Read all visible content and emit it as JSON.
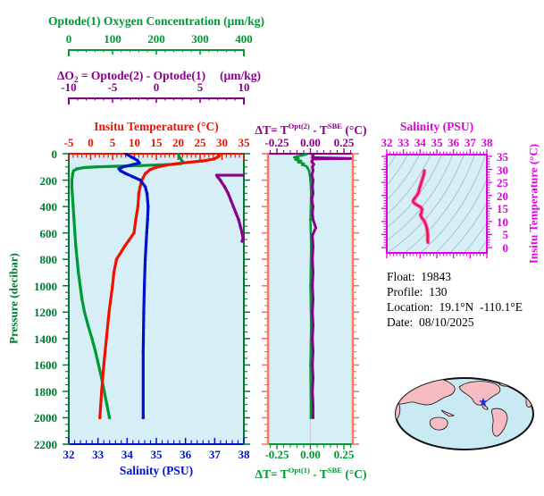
{
  "colors": {
    "green": "#009933",
    "dark_green": "#007A33",
    "red": "#EE1100",
    "blue": "#0011CC",
    "purple": "#8A008A",
    "magenta": "#E000E0",
    "salmon": "#F87860",
    "plot_bg": "#D6EEF6",
    "zero_line": "#F3BCCB",
    "contour": "#93B7BE",
    "ts_pink": "#FF4DA6",
    "ts_core": "#E01040",
    "map_ocean": "#C9E9F3",
    "map_land": "#F6BCC2",
    "map_outline": "#111111",
    "star_blue": "#2233DD"
  },
  "oxygen_axis": {
    "title": "Optode(1) Oxygen Concentration (μm/kg)",
    "tick_labels": [
      "0",
      "100",
      "200",
      "300",
      "400"
    ],
    "min": 0,
    "max": 400,
    "minor_step": 20
  },
  "delta_o2_axis": {
    "title_p1": "ΔO",
    "title_sub": "2",
    "title_p2": " = Optode(2) - Optode(1)",
    "title_unit": "(μm/kg)",
    "tick_labels": [
      "-10",
      "-5",
      "0",
      "5",
      "10"
    ],
    "min": -10,
    "max": 10,
    "minor_step": 1
  },
  "temperature_axis": {
    "title": "Insitu Temperature (°C)",
    "tick_labels": [
      "-5",
      "0",
      "5",
      "10",
      "15",
      "20",
      "25",
      "30",
      "35"
    ],
    "min": -5,
    "max": 35,
    "minor_step": 1
  },
  "pressure_axis": {
    "label": "Pressure (decibar)",
    "tick_labels": [
      "0",
      "200",
      "400",
      "600",
      "800",
      "1000",
      "1200",
      "1400",
      "1600",
      "1800",
      "2000",
      "2200"
    ],
    "min": 0,
    "max": 2200,
    "minor_step": 50
  },
  "salinity_axis": {
    "title": "Salinity (PSU)",
    "tick_labels": [
      "32",
      "33",
      "34",
      "35",
      "36",
      "37",
      "38"
    ],
    "min": 32,
    "max": 38,
    "minor_step": 0.2
  },
  "middle_panel": {
    "top_title": {
      "p1": "ΔT= T",
      "sup1": "Opt(2)",
      "p2": " - T",
      "sup2": "SBE",
      "p3": " (°C)"
    },
    "bottom_title": {
      "p1": "ΔT= T",
      "sup1": "Opt(1)",
      "p2": " - T",
      "sup2": "SBE",
      "p3": " (°C)"
    },
    "tick_labels": [
      "-0.25",
      "0.00",
      "0.25"
    ],
    "min": -0.317,
    "max": 0.317,
    "minor_step": 0.05
  },
  "ts_panel": {
    "title": "Salinity (PSU)",
    "x_tick_labels": [
      "32",
      "33",
      "34",
      "35",
      "36",
      "37",
      "38"
    ],
    "y_tick_labels": [
      "35",
      "30",
      "25",
      "20",
      "15",
      "10",
      "5",
      "0"
    ],
    "y_label": "Insitu Temperature (°C)",
    "contour_count": 15
  },
  "info": {
    "float_line": "Float:  19843",
    "profile_line": "Profile:  130",
    "location_line": "Location:  19.1°N  -110.1°E",
    "date_line": "Date:  08/10/2025"
  },
  "chart_data": [
    {
      "type": "line",
      "title": "Profile plot: oxygen / temperature / salinity / ΔO2 vs pressure",
      "ylabel": "Pressure (decibar)",
      "ylim": [
        0,
        2200
      ],
      "grid": false,
      "series": [
        {
          "name": "oxygen_umol_kg",
          "axis": "oxygen",
          "xlim": [
            0,
            400
          ],
          "color_key": "green",
          "points": [
            [
              0,
              250
            ],
            [
              20,
              252
            ],
            [
              40,
              256
            ],
            [
              60,
              260
            ],
            [
              75,
              256
            ],
            [
              80,
              238
            ],
            [
              85,
              205
            ],
            [
              90,
              160
            ],
            [
              95,
              110
            ],
            [
              100,
              62
            ],
            [
              105,
              35
            ],
            [
              115,
              18
            ],
            [
              130,
              11
            ],
            [
              150,
              9
            ],
            [
              200,
              7
            ],
            [
              250,
              7
            ],
            [
              300,
              8
            ],
            [
              400,
              10
            ],
            [
              500,
              12
            ],
            [
              600,
              14
            ],
            [
              700,
              16
            ],
            [
              800,
              19
            ],
            [
              900,
              22
            ],
            [
              1000,
              26
            ],
            [
              1100,
              30
            ],
            [
              1200,
              36
            ],
            [
              1300,
              44
            ],
            [
              1400,
              53
            ],
            [
              1500,
              61
            ],
            [
              1600,
              68
            ],
            [
              1700,
              75
            ],
            [
              1800,
              81
            ],
            [
              1900,
              87
            ],
            [
              2000,
              93
            ]
          ]
        },
        {
          "name": "insitu_temperature_C",
          "axis": "temperature",
          "xlim": [
            -5,
            35
          ],
          "color_key": "red",
          "points": [
            [
              0,
              29.5
            ],
            [
              20,
              29.3
            ],
            [
              40,
              28.2
            ],
            [
              55,
              25.5
            ],
            [
              70,
              21.0
            ],
            [
              85,
              17.5
            ],
            [
              100,
              15.3
            ],
            [
              120,
              13.6
            ],
            [
              150,
              12.5
            ],
            [
              200,
              11.7
            ],
            [
              250,
              11.3
            ],
            [
              300,
              11.0
            ],
            [
              400,
              10.8
            ],
            [
              500,
              10.3
            ],
            [
              600,
              9.9
            ],
            [
              700,
              7.8
            ],
            [
              800,
              5.9
            ],
            [
              900,
              5.3
            ],
            [
              1000,
              5.0
            ],
            [
              1200,
              4.2
            ],
            [
              1400,
              3.6
            ],
            [
              1600,
              3.0
            ],
            [
              1800,
              2.5
            ],
            [
              2000,
              2.1
            ]
          ]
        },
        {
          "name": "salinity_psu",
          "axis": "salinity",
          "xlim": [
            32,
            38
          ],
          "color_key": "blue",
          "points": [
            [
              0,
              33.95
            ],
            [
              25,
              34.15
            ],
            [
              50,
              34.35
            ],
            [
              70,
              34.42
            ],
            [
              85,
              34.15
            ],
            [
              100,
              33.85
            ],
            [
              115,
              33.72
            ],
            [
              130,
              33.78
            ],
            [
              150,
              33.95
            ],
            [
              175,
              34.2
            ],
            [
              200,
              34.45
            ],
            [
              250,
              34.62
            ],
            [
              300,
              34.68
            ],
            [
              400,
              34.72
            ],
            [
              500,
              34.7
            ],
            [
              600,
              34.67
            ],
            [
              800,
              34.62
            ],
            [
              1000,
              34.59
            ],
            [
              1200,
              34.57
            ],
            [
              1500,
              34.55
            ],
            [
              2000,
              34.55
            ]
          ]
        },
        {
          "name": "delta_O2_umol_kg",
          "axis": "delta_o2",
          "xlim": [
            -10,
            10
          ],
          "color_key": "purple",
          "points": [
            [
              163,
              10.0
            ],
            [
              163,
              6.9
            ],
            [
              175,
              7.0
            ],
            [
              200,
              7.3
            ],
            [
              250,
              7.8
            ],
            [
              300,
              8.2
            ],
            [
              350,
              8.5
            ],
            [
              400,
              8.8
            ],
            [
              450,
              9.1
            ],
            [
              500,
              9.4
            ],
            [
              550,
              9.6
            ],
            [
              600,
              9.8
            ],
            [
              640,
              9.9
            ],
            [
              663,
              9.8
            ]
          ]
        }
      ]
    },
    {
      "type": "line",
      "title": "ΔT panel: optode minus SBE temperature vs pressure",
      "xlim": [
        -0.317,
        0.317
      ],
      "ylim": [
        0,
        2200
      ],
      "series": [
        {
          "name": "dT_opt1_minus_sbe",
          "color_key": "green",
          "points": [
            [
              5,
              -0.03
            ],
            [
              12,
              -0.06
            ],
            [
              20,
              -0.1
            ],
            [
              28,
              -0.12
            ],
            [
              35,
              -0.09
            ],
            [
              45,
              -0.11
            ],
            [
              55,
              -0.07
            ],
            [
              65,
              -0.09
            ],
            [
              75,
              -0.05
            ],
            [
              85,
              -0.06
            ],
            [
              95,
              -0.03
            ],
            [
              110,
              -0.02
            ],
            [
              130,
              -0.01
            ],
            [
              200,
              0.0
            ],
            [
              300,
              0.005
            ],
            [
              500,
              0.0
            ],
            [
              700,
              0.005
            ],
            [
              1000,
              0.0
            ],
            [
              1300,
              0.005
            ],
            [
              1600,
              0.0
            ],
            [
              2000,
              0.003
            ]
          ]
        },
        {
          "name": "dT_opt2_minus_sbe",
          "color_key": "purple",
          "points": [
            [
              0,
              0.01
            ],
            [
              15,
              0.02
            ],
            [
              30,
              0.015
            ],
            [
              36,
              0.3
            ],
            [
              40,
              0.02
            ],
            [
              60,
              0.01
            ],
            [
              80,
              0.025
            ],
            [
              100,
              0.015
            ],
            [
              130,
              0.02
            ],
            [
              160,
              0.01
            ],
            [
              200,
              0.02
            ],
            [
              250,
              0.015
            ],
            [
              300,
              0.02
            ],
            [
              350,
              0.01
            ],
            [
              400,
              0.02
            ],
            [
              450,
              0.015
            ],
            [
              500,
              0.02
            ],
            [
              560,
              0.04
            ],
            [
              620,
              0.015
            ],
            [
              700,
              0.02
            ],
            [
              800,
              0.015
            ],
            [
              900,
              0.02
            ],
            [
              1000,
              0.015
            ],
            [
              1100,
              0.02
            ],
            [
              1200,
              0.015
            ],
            [
              1300,
              0.02
            ],
            [
              1400,
              0.015
            ],
            [
              1500,
              0.02
            ],
            [
              1600,
              0.015
            ],
            [
              1700,
              0.02
            ],
            [
              1800,
              0.015
            ],
            [
              1900,
              0.02
            ],
            [
              2000,
              0.02
            ]
          ]
        }
      ]
    },
    {
      "type": "line",
      "title": "T-S diagram with isopycnal contours",
      "xlim": [
        32,
        38
      ],
      "ylim": [
        0,
        35
      ],
      "series": [
        {
          "name": "ts_curve",
          "color_key": "ts_pink",
          "points": [
            [
              34.25,
              29.5
            ],
            [
              34.22,
              28
            ],
            [
              34.12,
              26
            ],
            [
              34.02,
              24
            ],
            [
              33.95,
              22.5
            ],
            [
              33.9,
              21
            ],
            [
              33.78,
              19.8
            ],
            [
              33.62,
              18.5
            ],
            [
              33.57,
              17.8
            ],
            [
              33.65,
              17.0
            ],
            [
              33.85,
              16.2
            ],
            [
              34.05,
              15.4
            ],
            [
              34.12,
              14.6
            ],
            [
              34.08,
              13.5
            ],
            [
              34.03,
              12.4
            ],
            [
              34.1,
              11.4
            ],
            [
              34.25,
              10.2
            ],
            [
              34.33,
              9.0
            ],
            [
              34.4,
              7.5
            ],
            [
              34.44,
              6.0
            ],
            [
              34.46,
              4.5
            ],
            [
              34.45,
              3.0
            ],
            [
              34.47,
              2.0
            ]
          ]
        }
      ]
    }
  ],
  "map": {
    "star_location": "19.1N -110.1E"
  }
}
